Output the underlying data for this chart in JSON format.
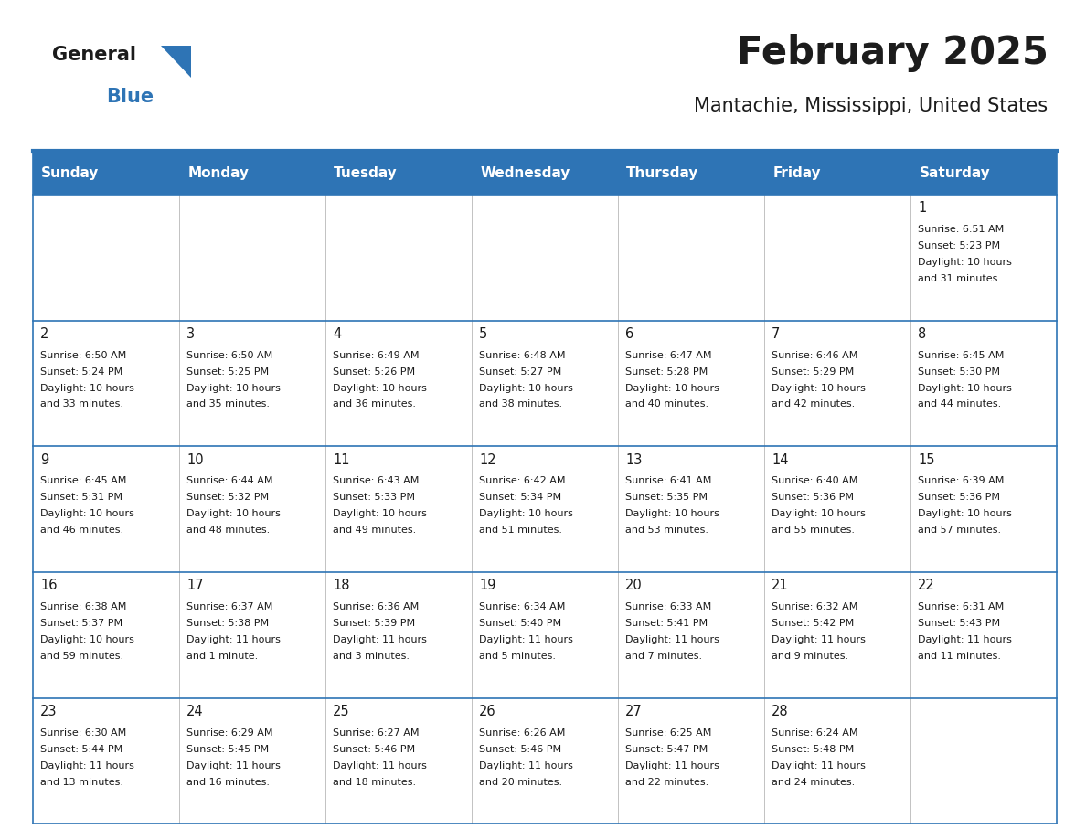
{
  "title": "February 2025",
  "subtitle": "Mantachie, Mississippi, United States",
  "header_bg": "#2E74B5",
  "header_text_color": "#FFFFFF",
  "border_color": "#2E74B5",
  "cell_bg": "#FFFFFF",
  "text_color": "#1a1a1a",
  "days_of_week": [
    "Sunday",
    "Monday",
    "Tuesday",
    "Wednesday",
    "Thursday",
    "Friday",
    "Saturday"
  ],
  "calendar_data": [
    [
      {
        "day": "",
        "info": ""
      },
      {
        "day": "",
        "info": ""
      },
      {
        "day": "",
        "info": ""
      },
      {
        "day": "",
        "info": ""
      },
      {
        "day": "",
        "info": ""
      },
      {
        "day": "",
        "info": ""
      },
      {
        "day": "1",
        "info": "Sunrise: 6:51 AM\nSunset: 5:23 PM\nDaylight: 10 hours\nand 31 minutes."
      }
    ],
    [
      {
        "day": "2",
        "info": "Sunrise: 6:50 AM\nSunset: 5:24 PM\nDaylight: 10 hours\nand 33 minutes."
      },
      {
        "day": "3",
        "info": "Sunrise: 6:50 AM\nSunset: 5:25 PM\nDaylight: 10 hours\nand 35 minutes."
      },
      {
        "day": "4",
        "info": "Sunrise: 6:49 AM\nSunset: 5:26 PM\nDaylight: 10 hours\nand 36 minutes."
      },
      {
        "day": "5",
        "info": "Sunrise: 6:48 AM\nSunset: 5:27 PM\nDaylight: 10 hours\nand 38 minutes."
      },
      {
        "day": "6",
        "info": "Sunrise: 6:47 AM\nSunset: 5:28 PM\nDaylight: 10 hours\nand 40 minutes."
      },
      {
        "day": "7",
        "info": "Sunrise: 6:46 AM\nSunset: 5:29 PM\nDaylight: 10 hours\nand 42 minutes."
      },
      {
        "day": "8",
        "info": "Sunrise: 6:45 AM\nSunset: 5:30 PM\nDaylight: 10 hours\nand 44 minutes."
      }
    ],
    [
      {
        "day": "9",
        "info": "Sunrise: 6:45 AM\nSunset: 5:31 PM\nDaylight: 10 hours\nand 46 minutes."
      },
      {
        "day": "10",
        "info": "Sunrise: 6:44 AM\nSunset: 5:32 PM\nDaylight: 10 hours\nand 48 minutes."
      },
      {
        "day": "11",
        "info": "Sunrise: 6:43 AM\nSunset: 5:33 PM\nDaylight: 10 hours\nand 49 minutes."
      },
      {
        "day": "12",
        "info": "Sunrise: 6:42 AM\nSunset: 5:34 PM\nDaylight: 10 hours\nand 51 minutes."
      },
      {
        "day": "13",
        "info": "Sunrise: 6:41 AM\nSunset: 5:35 PM\nDaylight: 10 hours\nand 53 minutes."
      },
      {
        "day": "14",
        "info": "Sunrise: 6:40 AM\nSunset: 5:36 PM\nDaylight: 10 hours\nand 55 minutes."
      },
      {
        "day": "15",
        "info": "Sunrise: 6:39 AM\nSunset: 5:36 PM\nDaylight: 10 hours\nand 57 minutes."
      }
    ],
    [
      {
        "day": "16",
        "info": "Sunrise: 6:38 AM\nSunset: 5:37 PM\nDaylight: 10 hours\nand 59 minutes."
      },
      {
        "day": "17",
        "info": "Sunrise: 6:37 AM\nSunset: 5:38 PM\nDaylight: 11 hours\nand 1 minute."
      },
      {
        "day": "18",
        "info": "Sunrise: 6:36 AM\nSunset: 5:39 PM\nDaylight: 11 hours\nand 3 minutes."
      },
      {
        "day": "19",
        "info": "Sunrise: 6:34 AM\nSunset: 5:40 PM\nDaylight: 11 hours\nand 5 minutes."
      },
      {
        "day": "20",
        "info": "Sunrise: 6:33 AM\nSunset: 5:41 PM\nDaylight: 11 hours\nand 7 minutes."
      },
      {
        "day": "21",
        "info": "Sunrise: 6:32 AM\nSunset: 5:42 PM\nDaylight: 11 hours\nand 9 minutes."
      },
      {
        "day": "22",
        "info": "Sunrise: 6:31 AM\nSunset: 5:43 PM\nDaylight: 11 hours\nand 11 minutes."
      }
    ],
    [
      {
        "day": "23",
        "info": "Sunrise: 6:30 AM\nSunset: 5:44 PM\nDaylight: 11 hours\nand 13 minutes."
      },
      {
        "day": "24",
        "info": "Sunrise: 6:29 AM\nSunset: 5:45 PM\nDaylight: 11 hours\nand 16 minutes."
      },
      {
        "day": "25",
        "info": "Sunrise: 6:27 AM\nSunset: 5:46 PM\nDaylight: 11 hours\nand 18 minutes."
      },
      {
        "day": "26",
        "info": "Sunrise: 6:26 AM\nSunset: 5:46 PM\nDaylight: 11 hours\nand 20 minutes."
      },
      {
        "day": "27",
        "info": "Sunrise: 6:25 AM\nSunset: 5:47 PM\nDaylight: 11 hours\nand 22 minutes."
      },
      {
        "day": "28",
        "info": "Sunrise: 6:24 AM\nSunset: 5:48 PM\nDaylight: 11 hours\nand 24 minutes."
      },
      {
        "day": "",
        "info": ""
      }
    ]
  ]
}
